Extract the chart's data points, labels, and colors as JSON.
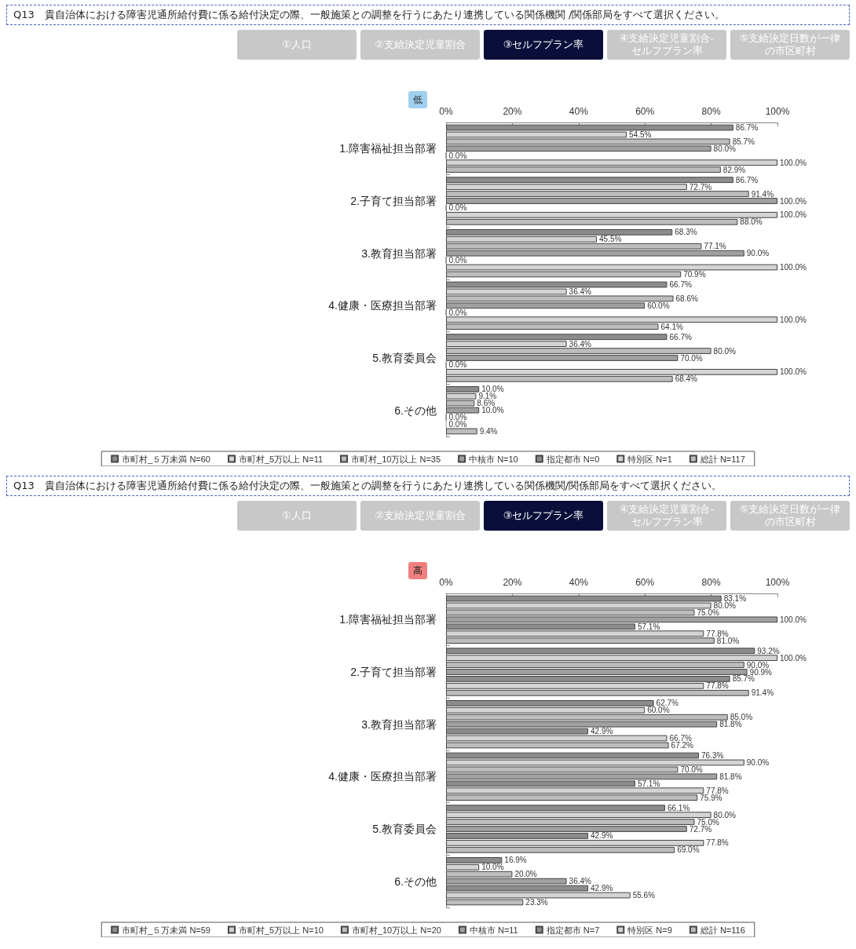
{
  "chart_data": [
    {
      "type": "bar",
      "orientation": "horizontal",
      "title": "Q13　貴自治体における障害児通所給付費に係る給付決定の際、一般施策との調整を行うにあたり連携している関係機関 /関係部局をすべて選択ください。",
      "subtitle": "低",
      "annotations": [
        "①人口",
        "②支給決定児童割合",
        "③セルフプラン率",
        "④支給決定児童割合-セルフプラン率",
        "⑤支給決定日数が一律の市区町村"
      ],
      "categories": [
        "1.障害福祉担当部署",
        "2.子育て担当部署",
        "3.教育担当部署",
        "4.健康・医療担当部署",
        "5.教育委員会",
        "6.その他"
      ],
      "xlim": [
        0,
        100
      ],
      "xticks": [
        {
          "value": 0,
          "label": "0%"
        },
        {
          "value": 20,
          "label": "20%"
        },
        {
          "value": 40,
          "label": "40%"
        },
        {
          "value": 60,
          "label": "60%"
        },
        {
          "value": 80,
          "label": "80%"
        },
        {
          "value": 100,
          "label": "100%"
        }
      ],
      "grid": false,
      "legend": "bottom",
      "series": [
        {
          "name": "市町村_５万未満 N=60",
          "color": "#8c8c8c",
          "values": [
            86.7,
            86.7,
            68.3,
            66.7,
            66.7,
            10.0
          ],
          "value_labels": [
            "86.7%",
            "86.7%",
            "68.3%",
            "66.7%",
            "66.7%",
            "10.0%"
          ]
        },
        {
          "name": "市町村_5万以上 N=11",
          "color": "#d4d4d4",
          "values": [
            54.5,
            72.7,
            45.5,
            36.4,
            36.4,
            9.1
          ],
          "value_labels": [
            "54.5%",
            "72.7%",
            "45.5%",
            "36.4%",
            "36.4%",
            "9.1%"
          ]
        },
        {
          "name": "市町村_10万以上 N=35",
          "color": "#bdbdbd",
          "values": [
            85.7,
            91.4,
            77.1,
            68.6,
            80.0,
            8.6
          ],
          "value_labels": [
            "85.7%",
            "91.4%",
            "77.1%",
            "68.6%",
            "80.0%",
            "8.6%"
          ]
        },
        {
          "name": "中核市 N=10",
          "color": "#a0a0a0",
          "values": [
            80.0,
            100.0,
            90.0,
            60.0,
            70.0,
            10.0
          ],
          "value_labels": [
            "80.0%",
            "100.0%",
            "90.0%",
            "60.0%",
            "70.0%",
            "10.0%"
          ]
        },
        {
          "name": "指定都市 N=0",
          "color": "#8c8c8c",
          "values": [
            0.0,
            0.0,
            0.0,
            0.0,
            0.0,
            0.0
          ],
          "value_labels": [
            "0.0%",
            "0.0%",
            "0.0%",
            "0.0%",
            "0.0%",
            "0.0%"
          ]
        },
        {
          "name": "特別区 N=1",
          "color": "#d4d4d4",
          "values": [
            100.0,
            100.0,
            100.0,
            100.0,
            100.0,
            0.0
          ],
          "value_labels": [
            "100.0%",
            "100.0%",
            "100.0%",
            "100.0%",
            "100.0%",
            "0.0%"
          ]
        },
        {
          "name": "総計 N=117",
          "color": "#bdbdbd",
          "values": [
            82.9,
            88.0,
            70.9,
            64.1,
            68.4,
            9.4
          ],
          "value_labels": [
            "82.9%",
            "88.0%",
            "70.9%",
            "64.1%",
            "68.4%",
            "9.4%"
          ]
        }
      ]
    },
    {
      "type": "bar",
      "orientation": "horizontal",
      "title": "Q13　貴自治体における障害児通所給付費に係る給付決定の際、一般施策との調整を行うにあたり連携している関係機関/関係部局をすべて選択ください。",
      "subtitle": "高",
      "annotations": [
        "①人口",
        "②支給決定児童割合",
        "③セルフプラン率",
        "④支給決定児童割合-セルフプラン率",
        "⑤支給決定日数が一律の市区町村"
      ],
      "categories": [
        "1.障害福祉担当部署",
        "2.子育て担当部署",
        "3.教育担当部署",
        "4.健康・医療担当部署",
        "5.教育委員会",
        "6.その他"
      ],
      "xlim": [
        0,
        100
      ],
      "xticks": [
        {
          "value": 0,
          "label": "0%"
        },
        {
          "value": 20,
          "label": "20%"
        },
        {
          "value": 40,
          "label": "40%"
        },
        {
          "value": 60,
          "label": "60%"
        },
        {
          "value": 80,
          "label": "80%"
        },
        {
          "value": 100,
          "label": "100%"
        }
      ],
      "grid": false,
      "legend": "bottom",
      "series": [
        {
          "name": "市町村_５万未満 N=59",
          "color": "#8c8c8c",
          "values": [
            83.1,
            93.2,
            62.7,
            76.3,
            66.1,
            16.9
          ],
          "value_labels": [
            "83.1%",
            "93.2%",
            "62.7%",
            "76.3%",
            "66.1%",
            "16.9%"
          ]
        },
        {
          "name": "市町村_5万以上 N=10",
          "color": "#d4d4d4",
          "values": [
            80.0,
            100.0,
            60.0,
            90.0,
            80.0,
            10.0
          ],
          "value_labels": [
            "80.0%",
            "100.0%",
            "60.0%",
            "90.0%",
            "80.0%",
            "10.0%"
          ]
        },
        {
          "name": "市町村_10万以上 N=20",
          "color": "#bdbdbd",
          "values": [
            75.0,
            90.0,
            85.0,
            70.0,
            75.0,
            20.0
          ],
          "value_labels": [
            "75.0%",
            "90.0%",
            "85.0%",
            "70.0%",
            "75.0%",
            "20.0%"
          ]
        },
        {
          "name": "中核市 N=11",
          "color": "#a0a0a0",
          "values": [
            100.0,
            90.9,
            81.8,
            81.8,
            72.7,
            36.4
          ],
          "value_labels": [
            "100.0%",
            "90.9%",
            "81.8%",
            "81.8%",
            "72.7%",
            "36.4%"
          ]
        },
        {
          "name": "指定都市 N=7",
          "color": "#8c8c8c",
          "values": [
            57.1,
            85.7,
            42.9,
            57.1,
            42.9,
            42.9
          ],
          "value_labels": [
            "57.1%",
            "85.7%",
            "42.9%",
            "57.1%",
            "42.9%",
            "42.9%"
          ]
        },
        {
          "name": "特別区 N=9",
          "color": "#d4d4d4",
          "values": [
            77.8,
            77.8,
            66.7,
            77.8,
            77.8,
            55.6
          ],
          "value_labels": [
            "77.8%",
            "77.8%",
            "66.7%",
            "77.8%",
            "77.8%",
            "55.6%"
          ]
        },
        {
          "name": "総計 N=116",
          "color": "#bdbdbd",
          "values": [
            81.0,
            91.4,
            67.2,
            75.9,
            69.0,
            23.3
          ],
          "value_labels": [
            "81.0%",
            "91.4%",
            "67.2%",
            "75.9%",
            "69.0%",
            "23.3%"
          ]
        }
      ]
    }
  ]
}
